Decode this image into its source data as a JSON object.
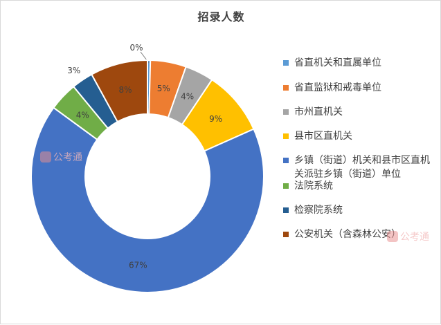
{
  "chart_data": {
    "type": "pie",
    "variant": "doughnut",
    "title": "招录人数",
    "legend_position": "right",
    "slices": [
      {
        "label": "省直机关和直属单位",
        "value": 0.4,
        "data_label": "0%",
        "color": "#5b9bd5"
      },
      {
        "label": "省直监狱和戒毒单位",
        "value": 5,
        "data_label": "5%",
        "color": "#ed7d31"
      },
      {
        "label": "市州直机关",
        "value": 4,
        "data_label": "4%",
        "color": "#a5a5a5"
      },
      {
        "label": "县市区直机关",
        "value": 9,
        "data_label": "9%",
        "color": "#ffc000"
      },
      {
        "label": "乡镇（街道）机关和县市区直机关派驻乡镇（街道）单位",
        "value": 67,
        "data_label": "67%",
        "color": "#4472c4"
      },
      {
        "label": "法院系统",
        "value": 4,
        "data_label": "4%",
        "color": "#70ad47"
      },
      {
        "label": "检察院系统",
        "value": 3,
        "data_label": "3%",
        "color": "#255e91"
      },
      {
        "label": "公安机关（含森林公安）",
        "value": 8,
        "data_label": "8%",
        "color": "#9e480e"
      }
    ]
  },
  "watermark": {
    "text": "公考通"
  }
}
